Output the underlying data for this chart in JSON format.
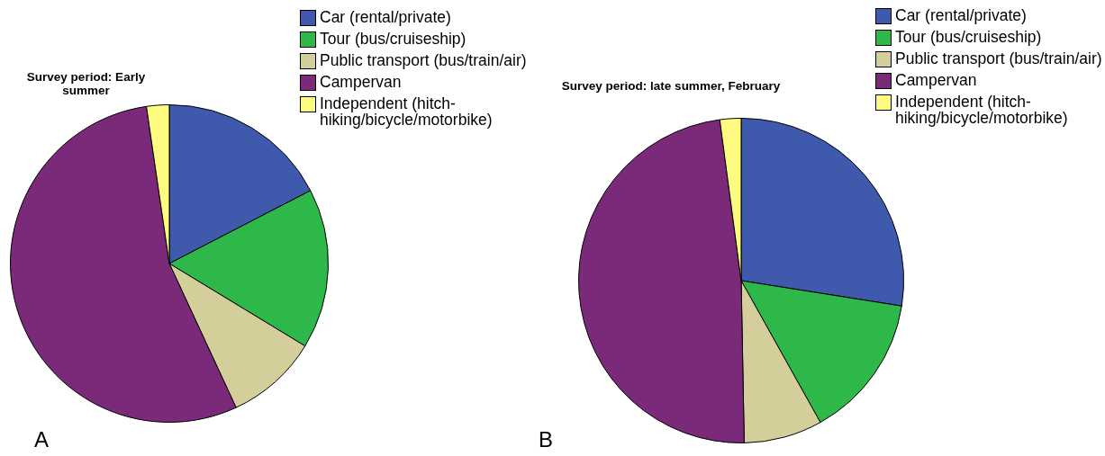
{
  "chart_data": [
    {
      "type": "pie",
      "title": "Survey period: Early summer",
      "legend": "top right",
      "annotations": [
        "A"
      ],
      "categories": [
        "Car (rental/private)",
        "Tour (bus/cruiseship)",
        "Public transport (bus/train/air)",
        "Campervan",
        "Independent (hitch-hiking/bicycle/motorbike)"
      ],
      "values": [
        17.4,
        16.3,
        9.4,
        54.6,
        2.3
      ],
      "colors": [
        "#3f5aad",
        "#2fb84a",
        "#d4cf9a",
        "#7b2a7a",
        "#fdfb80"
      ]
    },
    {
      "type": "pie",
      "title": "Survey period: late summer, February",
      "legend": "top right",
      "annotations": [
        "B"
      ],
      "categories": [
        "Car (rental/private)",
        "Tour (bus/cruiseship)",
        "Public transport (bus/train/air)",
        "Campervan",
        "Independent (hitch-hiking/bicycle/motorbike)"
      ],
      "values": [
        27.5,
        14.4,
        7.8,
        48.2,
        2.1
      ],
      "colors": [
        "#3f5aad",
        "#2fb84a",
        "#d4cf9a",
        "#7b2a7a",
        "#fdfb80"
      ]
    }
  ]
}
